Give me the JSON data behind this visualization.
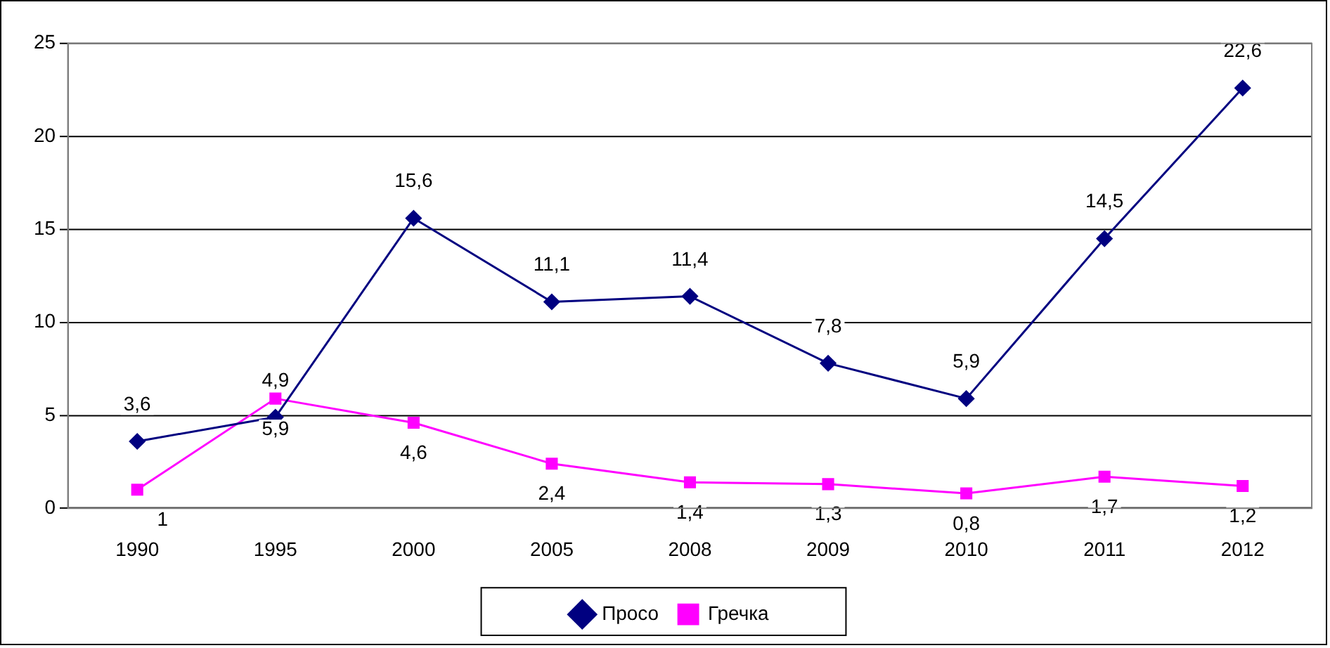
{
  "chart_data": {
    "type": "line",
    "categories": [
      "1990",
      "1995",
      "2000",
      "2005",
      "2008",
      "2009",
      "2010",
      "2011",
      "2012"
    ],
    "series": [
      {
        "name": "Просо",
        "color": "#000080",
        "marker": "diamond",
        "values": [
          3.6,
          4.9,
          15.6,
          11.1,
          11.4,
          7.8,
          5.9,
          14.5,
          22.6
        ],
        "value_labels": [
          "3,6",
          "4,9",
          "15,6",
          "11,1",
          "11,4",
          "7,8",
          "5,9",
          "14,5",
          "22,6"
        ]
      },
      {
        "name": "Гречка",
        "color": "#ff00ff",
        "marker": "square",
        "values": [
          1,
          5.9,
          4.6,
          2.4,
          1.4,
          1.3,
          0.8,
          1.7,
          1.2
        ],
        "value_labels": [
          "1",
          "5,9",
          "4,6",
          "2,4",
          "1,4",
          "1,3",
          "0,8",
          "1,7",
          "1,2"
        ]
      }
    ],
    "ylim": [
      0,
      25
    ],
    "yticks": [
      0,
      5,
      10,
      15,
      20,
      25
    ],
    "grid": "y",
    "legend": "bottom",
    "line_style": "solid"
  }
}
